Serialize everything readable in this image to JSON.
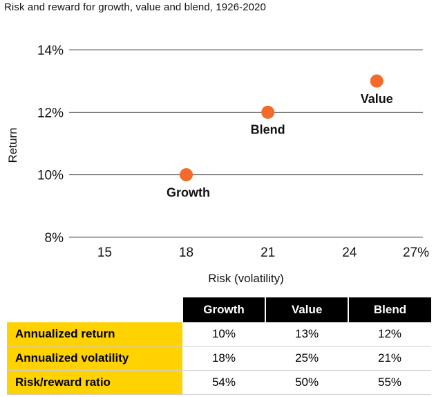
{
  "title": "Risk and reward for growth, value and blend, 1926-2020",
  "chart_data": {
    "type": "scatter",
    "title": "Risk and reward for growth, value and blend, 1926-2020",
    "xlabel": "Risk (volatility)",
    "ylabel": "Return",
    "xlim": [
      14,
      27
    ],
    "ylim": [
      8,
      14
    ],
    "x_ticks": [
      15,
      18,
      21,
      24,
      27
    ],
    "x_tick_labels": [
      "15",
      "18",
      "21",
      "24",
      "27%"
    ],
    "y_ticks": [
      8,
      10,
      12,
      14
    ],
    "y_tick_labels": [
      "8%",
      "10%",
      "12%",
      "14%"
    ],
    "grid": "horizontal",
    "points": [
      {
        "label": "Growth",
        "x": 18,
        "y": 10
      },
      {
        "label": "Blend",
        "x": 21,
        "y": 12
      },
      {
        "label": "Value",
        "x": 25,
        "y": 13
      }
    ],
    "marker_color": "#f26b2a"
  },
  "table": {
    "columns": [
      "Growth",
      "Value",
      "Blend"
    ],
    "rows": [
      {
        "label": "Annualized return",
        "values": [
          "10%",
          "13%",
          "12%"
        ]
      },
      {
        "label": "Annualized volatility",
        "values": [
          "18%",
          "25%",
          "21%"
        ]
      },
      {
        "label": "Risk/reward ratio",
        "values": [
          "54%",
          "50%",
          "55%"
        ]
      }
    ],
    "header_bg": "#000000",
    "label_bg": "#ffd200"
  }
}
